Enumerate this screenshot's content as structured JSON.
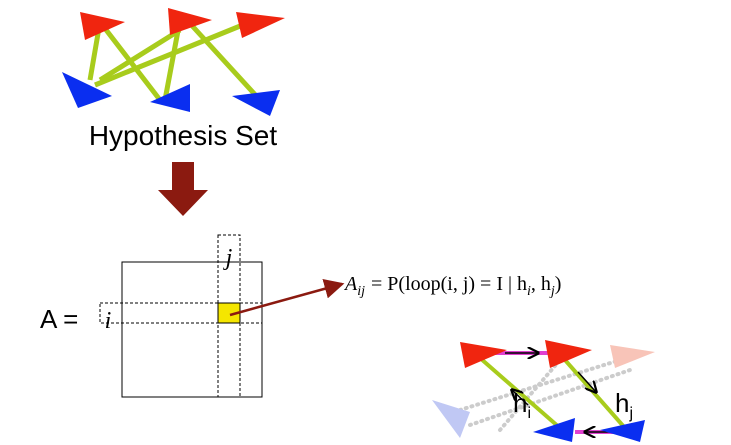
{
  "hypothesis_set": {
    "label": "Hypothesis Set"
  },
  "matrix": {
    "name": "A =",
    "row_label": "i",
    "col_label": "j"
  },
  "formula": {
    "lhs": "A",
    "lhs_sub": "ij",
    "rhs": "= P(loop(i, j) = I | h",
    "sub1": "i",
    "mid": ", h",
    "sub2": "j",
    "end": ")"
  },
  "loop": {
    "hi": {
      "base": "h",
      "sub": "i"
    },
    "hj": {
      "base": "h",
      "sub": "j"
    }
  }
}
